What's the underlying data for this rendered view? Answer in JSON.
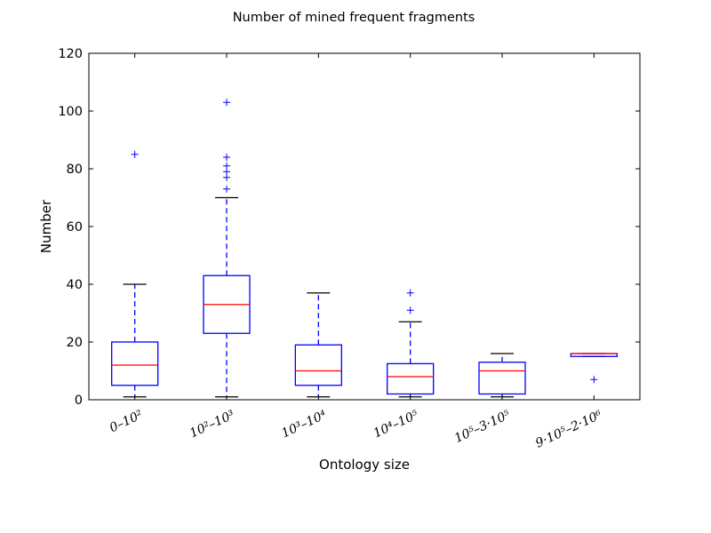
{
  "chart_data": {
    "type": "boxplot",
    "title": "Number of mined frequent fragments",
    "xlabel": "Ontology size",
    "ylabel": "Number",
    "ylim": [
      0,
      120
    ],
    "yticks": [
      0,
      20,
      40,
      60,
      80,
      100,
      120
    ],
    "categories": [
      "0–10²",
      "10²–10³",
      "10³–10⁴",
      "10⁴–10⁵",
      "10⁵–3·10⁵",
      "9·10⁵–2·10⁶"
    ],
    "boxes": [
      {
        "whisker_low": 1,
        "q1": 5,
        "median": 12,
        "q3": 20,
        "whisker_high": 40,
        "outliers": [
          85
        ]
      },
      {
        "whisker_low": 1,
        "q1": 23,
        "median": 33,
        "q3": 43,
        "whisker_high": 70,
        "outliers": [
          73,
          77,
          79,
          81,
          84,
          103
        ]
      },
      {
        "whisker_low": 1,
        "q1": 5,
        "median": 10,
        "q3": 19,
        "whisker_high": 37,
        "outliers": []
      },
      {
        "whisker_low": 1,
        "q1": 2,
        "median": 8,
        "q3": 12.5,
        "whisker_high": 27,
        "outliers": [
          31,
          37
        ]
      },
      {
        "whisker_low": 1,
        "q1": 2,
        "median": 10,
        "q3": 13,
        "whisker_high": 16,
        "outliers": []
      },
      {
        "whisker_low": 15,
        "q1": 15,
        "median": 16,
        "q3": 16,
        "whisker_high": 16,
        "outliers": [
          7
        ]
      }
    ],
    "colors": {
      "box": "#0000ff",
      "median": "#ff0000",
      "whisker_cap": "#000000",
      "outlier": "#0000ff"
    },
    "grid": false,
    "legend": "none"
  }
}
